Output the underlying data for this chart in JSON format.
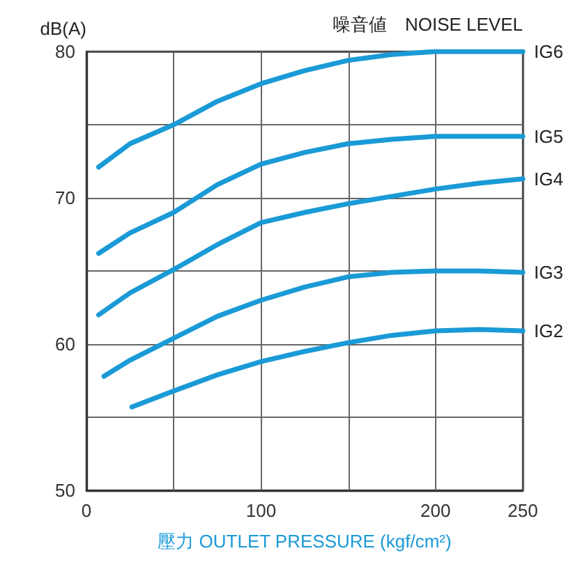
{
  "chart_data": {
    "type": "line",
    "title": "噪音値　NOISE LEVEL",
    "ylabel": "dB(A)",
    "xlabel": "壓力 OUTLET PRESSURE (kgf/cm²)",
    "xlim": [
      0,
      250
    ],
    "xticks": [
      0,
      {
        "value": 50,
        "label": null
      },
      100,
      {
        "value": 150,
        "label": null
      },
      200,
      250
    ],
    "ylim": [
      50,
      80
    ],
    "yticks": [
      50,
      {
        "value": 55,
        "label": null
      },
      60,
      {
        "value": 65,
        "label": null
      },
      70,
      {
        "value": 75,
        "label": null
      },
      80
    ],
    "grid": true,
    "legend": false,
    "marker": "none",
    "line_style": "solid",
    "series": [
      {
        "name": "IG6",
        "color": "#1a9ad6",
        "x": [
          7,
          25,
          50,
          75,
          100,
          125,
          150,
          175,
          200,
          225,
          250
        ],
        "values": [
          72.1,
          73.7,
          75,
          76.6,
          77.8,
          78.7,
          79.4,
          79.8,
          80,
          80,
          80
        ]
      },
      {
        "name": "IG5",
        "color": "#1a9ad6",
        "x": [
          7,
          25,
          50,
          75,
          100,
          125,
          150,
          175,
          200,
          225,
          250
        ],
        "values": [
          66.2,
          67.6,
          69,
          70.9,
          72.3,
          73.1,
          73.7,
          74,
          74.2,
          74.2,
          74.2
        ]
      },
      {
        "name": "IG4",
        "color": "#1a9ad6",
        "x": [
          7,
          25,
          50,
          75,
          100,
          125,
          150,
          175,
          200,
          225,
          250
        ],
        "values": [
          62,
          63.5,
          65.1,
          66.8,
          68.3,
          69,
          69.6,
          70.1,
          70.6,
          71,
          71.3
        ]
      },
      {
        "name": "IG3",
        "color": "#1a9ad6",
        "x": [
          10,
          25,
          50,
          75,
          100,
          125,
          150,
          175,
          200,
          225,
          250
        ],
        "values": [
          57.8,
          58.9,
          60.4,
          61.9,
          63,
          63.9,
          64.6,
          64.9,
          65,
          65,
          64.9
        ]
      },
      {
        "name": "IG2",
        "color": "#1a9ad6",
        "x": [
          26,
          50,
          75,
          100,
          125,
          150,
          175,
          200,
          225,
          250
        ],
        "values": [
          55.7,
          56.8,
          57.9,
          58.8,
          59.5,
          60.1,
          60.6,
          60.9,
          61,
          60.9
        ]
      }
    ]
  }
}
